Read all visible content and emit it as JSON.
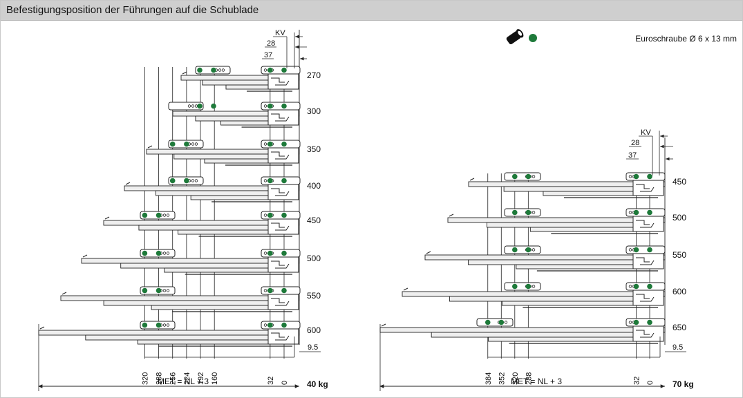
{
  "title": "Befestigungsposition der Führungen auf die Schublade",
  "legend": {
    "screw_label": "Euroschraube Ø 6 x 13 mm",
    "screw_icon": "screw-icon",
    "dot_color": "#1e7a3a"
  },
  "colors": {
    "dot": "#1e7a3a",
    "line": "#222222",
    "fill": "#efefef"
  },
  "left": {
    "top_labels": {
      "kv": "KV",
      "v28": "28",
      "v37": "37"
    },
    "lengths": [
      "270",
      "300",
      "350",
      "400",
      "450",
      "500",
      "550",
      "600"
    ],
    "bottom_dims": [
      "320",
      "288",
      "256",
      "224",
      "192",
      "160",
      "32",
      "0"
    ],
    "dim_95": "9.5",
    "met_label": "MET = NL + 3",
    "weight": "40 kg"
  },
  "right": {
    "top_labels": {
      "kv": "KV",
      "v28": "28",
      "v37": "37"
    },
    "lengths": [
      "450",
      "500",
      "550",
      "600",
      "650"
    ],
    "bottom_dims": [
      "384",
      "352",
      "320",
      "288",
      "32",
      "0"
    ],
    "dim_95": "9.5",
    "met_label": "MET = NL + 3",
    "weight": "70 kg"
  }
}
